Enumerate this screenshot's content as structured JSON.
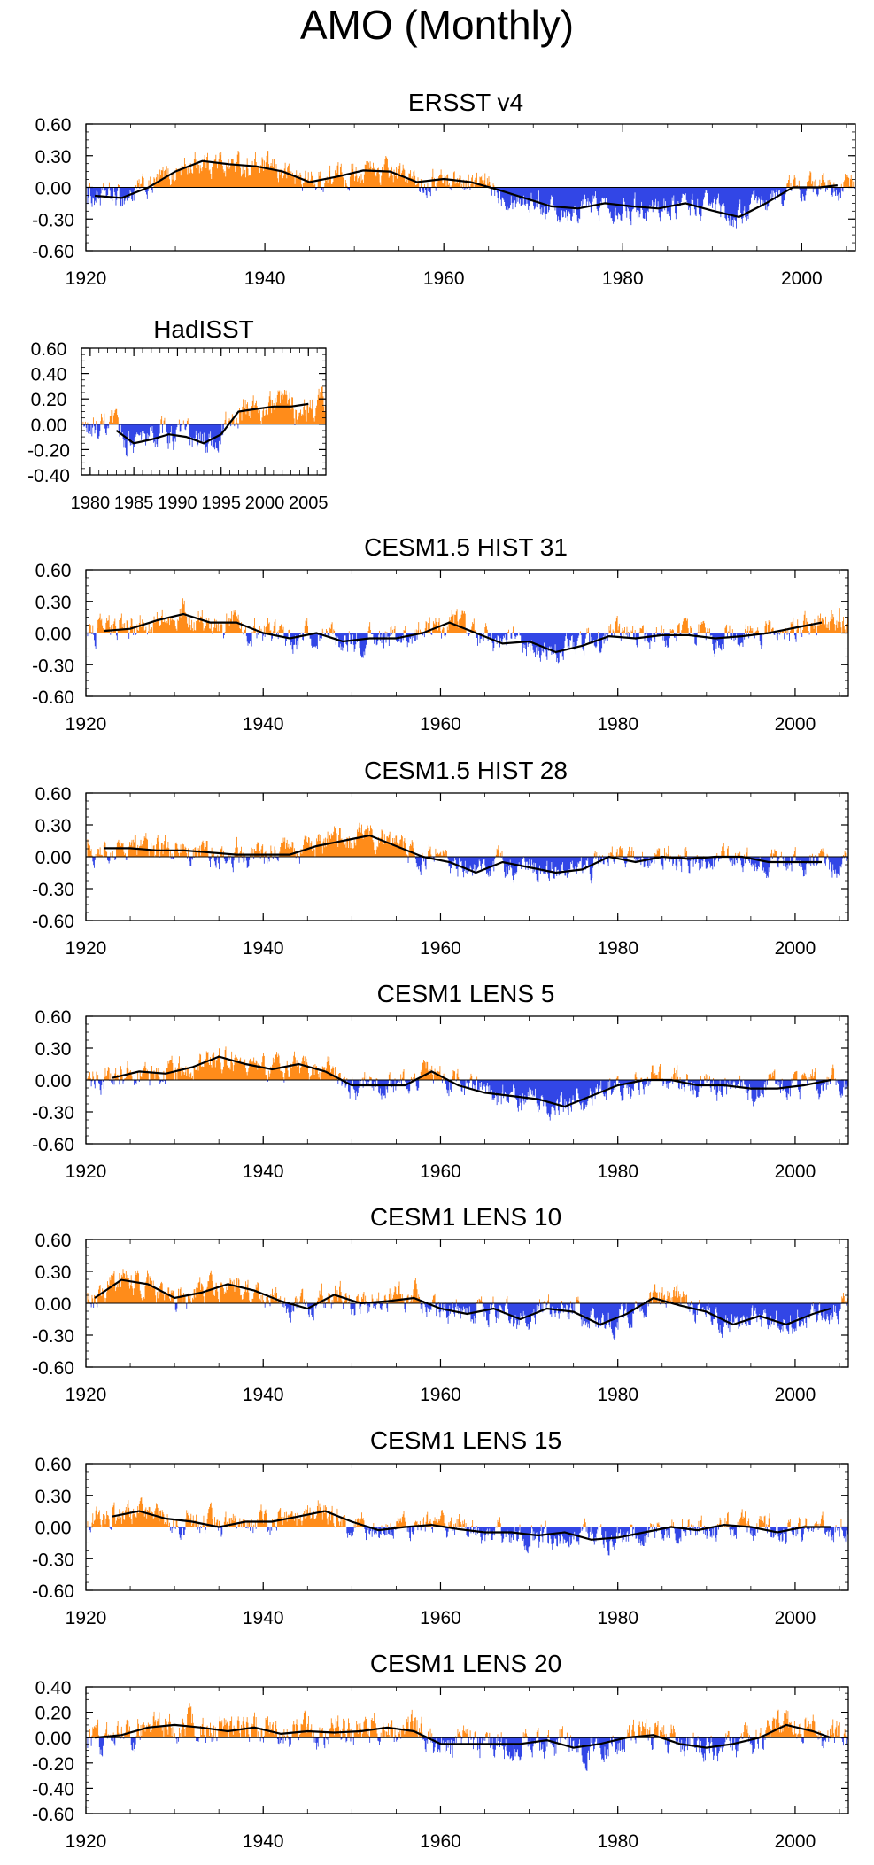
{
  "title": "AMO (Monthly)",
  "colors": {
    "positive": "#ff8c1a",
    "negative": "#3246e6",
    "smooth": "#000000",
    "axis": "#000000"
  },
  "chart_data": [
    {
      "type": "bar",
      "title": "ERSST v4",
      "xlim": [
        1920,
        2006
      ],
      "ylim": [
        -0.6,
        0.6
      ],
      "y_ticks": [
        "0.60",
        "0.30",
        "0.00",
        "-0.30",
        "-0.60"
      ],
      "x_ticks": [
        "1920",
        "1940",
        "1960",
        "1980",
        "2000"
      ],
      "smoothed": {
        "x": [
          1921,
          1924,
          1927,
          1930,
          1933,
          1936,
          1939,
          1942,
          1945,
          1948,
          1951,
          1954,
          1957,
          1960,
          1963,
          1966,
          1969,
          1972,
          1975,
          1978,
          1981,
          1984,
          1987,
          1990,
          1993,
          1996,
          1999,
          2002,
          2004
        ],
        "y": [
          -0.08,
          -0.1,
          0.0,
          0.15,
          0.25,
          0.22,
          0.2,
          0.15,
          0.05,
          0.1,
          0.16,
          0.15,
          0.05,
          0.08,
          0.05,
          -0.02,
          -0.1,
          -0.18,
          -0.2,
          -0.15,
          -0.18,
          -0.2,
          -0.15,
          -0.22,
          -0.28,
          -0.15,
          0.0,
          0.0,
          0.02
        ]
      }
    },
    {
      "type": "bar",
      "title": "HadISST",
      "xlim": [
        1979,
        2007
      ],
      "ylim": [
        -0.4,
        0.6
      ],
      "y_ticks": [
        "0.60",
        "0.40",
        "0.20",
        "0.00",
        "-0.20",
        "-0.40"
      ],
      "x_ticks": [
        "1980",
        "1985",
        "1990",
        "1995",
        "2000",
        "2005"
      ],
      "smoothed": {
        "x": [
          1983,
          1985,
          1987,
          1989,
          1991,
          1993,
          1995,
          1997,
          1999,
          2001,
          2003,
          2005
        ],
        "y": [
          -0.05,
          -0.15,
          -0.12,
          -0.08,
          -0.1,
          -0.15,
          -0.08,
          0.1,
          0.12,
          0.14,
          0.14,
          0.16
        ]
      }
    },
    {
      "type": "bar",
      "title": "CESM1.5 HIST 31",
      "xlim": [
        1920,
        2006
      ],
      "ylim": [
        -0.6,
        0.6
      ],
      "y_ticks": [
        "0.60",
        "0.30",
        "0.00",
        "-0.30",
        "-0.60"
      ],
      "x_ticks": [
        "1920",
        "1940",
        "1960",
        "1980",
        "2000"
      ],
      "smoothed": {
        "x": [
          1922,
          1925,
          1928,
          1931,
          1934,
          1937,
          1940,
          1943,
          1946,
          1949,
          1952,
          1955,
          1958,
          1961,
          1964,
          1967,
          1970,
          1973,
          1976,
          1979,
          1982,
          1985,
          1988,
          1991,
          1994,
          1997,
          2000,
          2003
        ],
        "y": [
          0.02,
          0.04,
          0.12,
          0.18,
          0.1,
          0.1,
          0.0,
          -0.05,
          0.0,
          -0.08,
          -0.05,
          -0.05,
          0.0,
          0.1,
          0.0,
          -0.1,
          -0.08,
          -0.18,
          -0.12,
          -0.03,
          -0.05,
          -0.02,
          -0.02,
          -0.05,
          -0.03,
          0.0,
          0.05,
          0.1
        ]
      }
    },
    {
      "type": "bar",
      "title": "CESM1.5 HIST 28",
      "xlim": [
        1920,
        2006
      ],
      "ylim": [
        -0.6,
        0.6
      ],
      "y_ticks": [
        "0.60",
        "0.30",
        "0.00",
        "-0.30",
        "-0.60"
      ],
      "x_ticks": [
        "1920",
        "1940",
        "1960",
        "1980",
        "2000"
      ],
      "smoothed": {
        "x": [
          1922,
          1925,
          1928,
          1931,
          1934,
          1937,
          1940,
          1943,
          1946,
          1949,
          1952,
          1955,
          1958,
          1961,
          1964,
          1967,
          1970,
          1973,
          1976,
          1979,
          1982,
          1985,
          1988,
          1991,
          1994,
          1997,
          2000,
          2003
        ],
        "y": [
          0.08,
          0.08,
          0.06,
          0.06,
          0.04,
          0.02,
          0.02,
          0.02,
          0.1,
          0.15,
          0.2,
          0.1,
          0.0,
          -0.05,
          -0.15,
          -0.05,
          -0.1,
          -0.15,
          -0.12,
          0.0,
          -0.05,
          0.0,
          -0.02,
          0.0,
          0.0,
          -0.05,
          -0.05,
          -0.05
        ]
      }
    },
    {
      "type": "bar",
      "title": "CESM1 LENS 5",
      "xlim": [
        1920,
        2006
      ],
      "ylim": [
        -0.6,
        0.6
      ],
      "y_ticks": [
        "0.60",
        "0.30",
        "0.00",
        "-0.30",
        "-0.60"
      ],
      "x_ticks": [
        "1920",
        "1940",
        "1960",
        "1980",
        "2000"
      ],
      "smoothed": {
        "x": [
          1923,
          1926,
          1929,
          1932,
          1935,
          1938,
          1941,
          1944,
          1947,
          1950,
          1953,
          1956,
          1959,
          1962,
          1965,
          1968,
          1971,
          1974,
          1977,
          1980,
          1983,
          1986,
          1989,
          1992,
          1995,
          1998,
          2001,
          2004
        ],
        "y": [
          0.02,
          0.08,
          0.06,
          0.12,
          0.22,
          0.15,
          0.1,
          0.15,
          0.08,
          -0.05,
          -0.05,
          -0.05,
          0.08,
          -0.05,
          -0.12,
          -0.15,
          -0.18,
          -0.25,
          -0.15,
          -0.05,
          0.0,
          0.0,
          -0.05,
          -0.05,
          -0.08,
          -0.08,
          -0.05,
          0.0
        ]
      }
    },
    {
      "type": "bar",
      "title": "CESM1 LENS 10",
      "xlim": [
        1920,
        2006
      ],
      "ylim": [
        -0.6,
        0.6
      ],
      "y_ticks": [
        "0.60",
        "0.30",
        "0.00",
        "-0.30",
        "-0.60"
      ],
      "x_ticks": [
        "1920",
        "1940",
        "1960",
        "1980",
        "2000"
      ],
      "smoothed": {
        "x": [
          1921,
          1924,
          1927,
          1930,
          1933,
          1936,
          1939,
          1942,
          1945,
          1948,
          1951,
          1954,
          1957,
          1960,
          1963,
          1966,
          1969,
          1972,
          1975,
          1978,
          1981,
          1984,
          1987,
          1990,
          1993,
          1996,
          1999,
          2002,
          2004
        ],
        "y": [
          0.05,
          0.22,
          0.18,
          0.05,
          0.1,
          0.18,
          0.12,
          0.02,
          -0.05,
          0.08,
          0.0,
          0.02,
          0.05,
          -0.05,
          -0.1,
          -0.05,
          -0.15,
          -0.05,
          -0.08,
          -0.2,
          -0.1,
          0.05,
          -0.02,
          -0.08,
          -0.2,
          -0.12,
          -0.2,
          -0.1,
          -0.05
        ]
      }
    },
    {
      "type": "bar",
      "title": "CESM1 LENS 15",
      "xlim": [
        1920,
        2006
      ],
      "ylim": [
        -0.6,
        0.6
      ],
      "y_ticks": [
        "0.60",
        "0.30",
        "0.00",
        "-0.30",
        "-0.60"
      ],
      "x_ticks": [
        "1920",
        "1940",
        "1960",
        "1980",
        "2000"
      ],
      "smoothed": {
        "x": [
          1923,
          1926,
          1929,
          1932,
          1935,
          1938,
          1941,
          1944,
          1947,
          1950,
          1953,
          1956,
          1959,
          1962,
          1965,
          1968,
          1971,
          1974,
          1977,
          1980,
          1983,
          1986,
          1989,
          1992,
          1995,
          1998,
          2001,
          2004
        ],
        "y": [
          0.1,
          0.15,
          0.08,
          0.05,
          0.0,
          0.05,
          0.05,
          0.1,
          0.15,
          0.05,
          -0.03,
          0.0,
          0.02,
          -0.02,
          -0.05,
          -0.05,
          -0.08,
          -0.05,
          -0.12,
          -0.1,
          -0.05,
          0.0,
          -0.03,
          0.02,
          0.0,
          -0.05,
          0.0,
          0.0
        ]
      }
    },
    {
      "type": "bar",
      "title": "CESM1 LENS 20",
      "xlim": [
        1920,
        2006
      ],
      "ylim": [
        -0.6,
        0.4
      ],
      "y_ticks": [
        "0.40",
        "0.20",
        "0.00",
        "-0.20",
        "-0.40",
        "-0.60"
      ],
      "x_ticks": [
        "1920",
        "1940",
        "1960",
        "1980",
        "2000"
      ],
      "smoothed": {
        "x": [
          1921,
          1924,
          1927,
          1930,
          1933,
          1936,
          1939,
          1942,
          1945,
          1948,
          1951,
          1954,
          1957,
          1960,
          1963,
          1966,
          1969,
          1972,
          1975,
          1978,
          1981,
          1984,
          1987,
          1990,
          1993,
          1996,
          1999,
          2002,
          2004
        ],
        "y": [
          0.0,
          0.02,
          0.08,
          0.1,
          0.08,
          0.05,
          0.08,
          0.03,
          0.05,
          0.04,
          0.05,
          0.08,
          0.05,
          -0.05,
          -0.05,
          -0.05,
          -0.05,
          -0.02,
          -0.08,
          -0.05,
          0.0,
          0.02,
          -0.05,
          -0.08,
          -0.05,
          0.0,
          0.1,
          0.05,
          0.0
        ]
      }
    }
  ]
}
